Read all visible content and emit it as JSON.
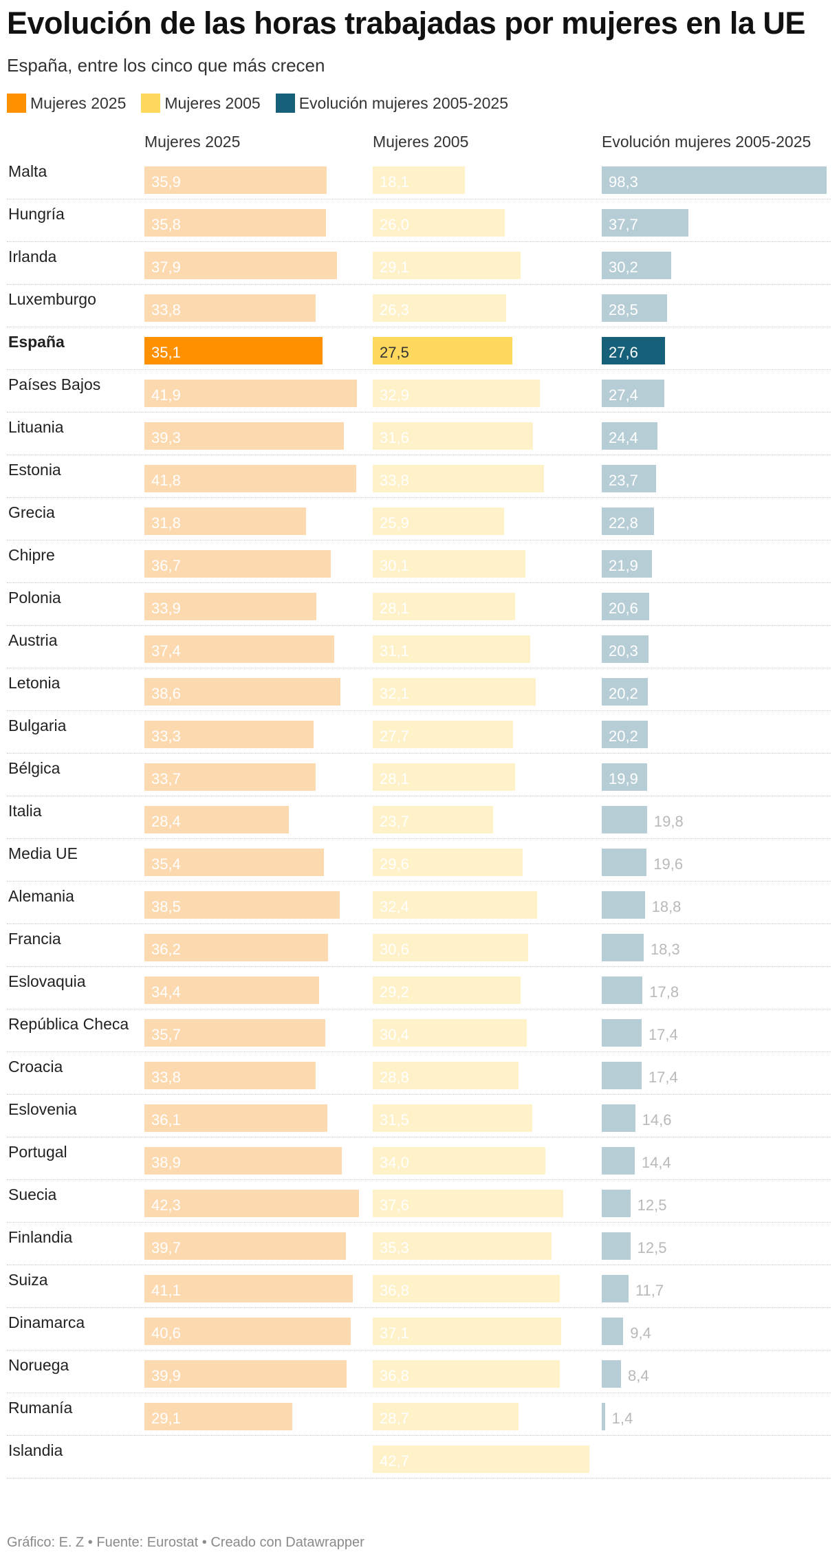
{
  "header": {
    "title": "Evolución de las horas trabajadas por mujeres en la UE",
    "subtitle": "España, entre los cinco que más crecen"
  },
  "legend": [
    {
      "label": "Mujeres 2025",
      "color": "#ff9000"
    },
    {
      "label": "Mujeres 2005",
      "color": "#ffd95e"
    },
    {
      "label": "Evolución mujeres 2005-2025",
      "color": "#17607a"
    }
  ],
  "columns": [
    "Mujeres 2025",
    "Mujeres 2005",
    "Evolución mujeres 2005-2025"
  ],
  "colors": {
    "highlight": [
      "#ff9000",
      "#ffd95e",
      "#17607a"
    ],
    "muted": [
      "#fdd9b0",
      "#fff1c8",
      "#b7cdd5"
    ],
    "muted_text": "#b9b9b9",
    "highlight_text": [
      "#ffffff",
      "#333333",
      "#ffffff"
    ]
  },
  "chart_data": {
    "type": "bar",
    "layout": "split-bars",
    "title": "Evolución de las horas trabajadas por mujeres en la UE",
    "subtitle": "España, entre los cinco que más crecen",
    "highlight_category": "España",
    "categories": [
      "Malta",
      "Hungría",
      "Irlanda",
      "Luxemburgo",
      "España",
      "Países Bajos",
      "Lituania",
      "Estonia",
      "Grecia",
      "Chipre",
      "Polonia",
      "Austria",
      "Letonia",
      "Bulgaria",
      "Bélgica",
      "Italia",
      "Media UE",
      "Alemania",
      "Francia",
      "Eslovaquia",
      "República Checa",
      "Croacia",
      "Eslovenia",
      "Portugal",
      "Suecia",
      "Finlandia",
      "Suiza",
      "Dinamarca",
      "Noruega",
      "Rumanía",
      "Islandia"
    ],
    "series": [
      {
        "name": "Mujeres 2025",
        "values": [
          "35,9",
          "35,8",
          "37,9",
          "33,8",
          "35,1",
          "41,9",
          "39,3",
          "41,8",
          "31,8",
          "36,7",
          "33,9",
          "37,4",
          "38,6",
          "33,3",
          "33,7",
          "28,4",
          "35,4",
          "38,5",
          "36,2",
          "34,4",
          "35,7",
          "33,8",
          "36,1",
          "38,9",
          "42,3",
          "39,7",
          "41,1",
          "40,6",
          "39,9",
          "29,1",
          null
        ]
      },
      {
        "name": "Mujeres 2005",
        "values": [
          "18,1",
          "26,0",
          "29,1",
          "26,3",
          "27,5",
          "32,9",
          "31,6",
          "33,8",
          "25,9",
          "30,1",
          "28,1",
          "31,1",
          "32,1",
          "27,7",
          "28,1",
          "23,7",
          "29,6",
          "32,4",
          "30,6",
          "29,2",
          "30,4",
          "28,8",
          "31,5",
          "34,0",
          "37,6",
          "35,3",
          "36,8",
          "37,1",
          "36,8",
          "28,7",
          "42,7"
        ]
      },
      {
        "name": "Evolución mujeres 2005-2025",
        "values": [
          "98,3",
          "37,7",
          "30,2",
          "28,5",
          "27,6",
          "27,4",
          "24,4",
          "23,7",
          "22,8",
          "21,9",
          "20,6",
          "20,3",
          "20,2",
          "20,2",
          "19,9",
          "19,8",
          "19,6",
          "18,8",
          "18,3",
          "17,8",
          "17,4",
          "17,4",
          "14,6",
          "14,4",
          "12,5",
          "12,5",
          "11,7",
          "9,4",
          "8,4",
          "1,4",
          null
        ]
      }
    ]
  },
  "footer": "Gráfico: E. Z • Fuente: Eurostat • Creado con Datawrapper"
}
